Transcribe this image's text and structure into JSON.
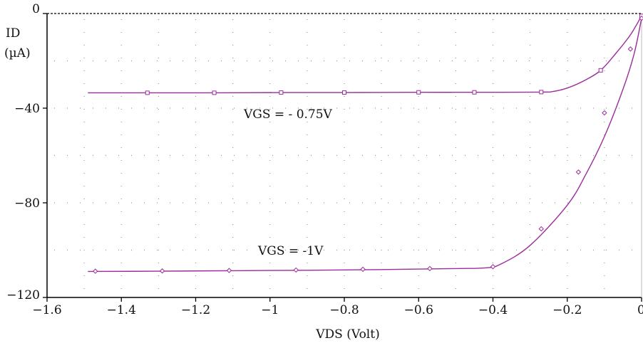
{
  "chart_data": {
    "type": "line",
    "xlabel": "VDS (Volt)",
    "ylabel_line1": "ID",
    "ylabel_line2": "(µA)",
    "xlim": [
      -1.6,
      0
    ],
    "ylim": [
      -120,
      0
    ],
    "x_ticks": [
      -1.6,
      -1.4,
      -1.2,
      -1,
      -0.8,
      -0.6,
      -0.4,
      -0.2,
      0
    ],
    "x_tick_labels": [
      "−1.6",
      "−1.4",
      "−1.2",
      "−1",
      "−0.8",
      "−0.6",
      "−0.4",
      "−0.2",
      "0"
    ],
    "y_ticks": [
      0,
      -40,
      -80,
      -120
    ],
    "y_tick_labels": [
      "0",
      "−40",
      "−80",
      "−120"
    ],
    "grid": "dotted",
    "colors": {
      "series": "#9b2c9b",
      "axis": "#000000",
      "grid": "#999999"
    },
    "series": [
      {
        "name": "VGS = - 0.75V",
        "marker": "square",
        "x": [
          -1.49,
          -1.33,
          -1.15,
          -0.97,
          -0.8,
          -0.6,
          -0.45,
          -0.27,
          -0.24,
          -0.2,
          -0.15,
          -0.11,
          -0.07,
          -0.03,
          0
        ],
        "y": [
          -33.5,
          -33.5,
          -33.5,
          -33.4,
          -33.4,
          -33.3,
          -33.3,
          -33.2,
          -33.0,
          -31.5,
          -28.0,
          -24.0,
          -17.0,
          -9.0,
          -1.0
        ],
        "markers_x": [
          -1.33,
          -1.15,
          -0.97,
          -0.8,
          -0.6,
          -0.45,
          -0.27,
          -0.11,
          0
        ],
        "markers_y": [
          -33.5,
          -33.5,
          -33.4,
          -33.4,
          -33.3,
          -33.3,
          -33.2,
          -24.0,
          -1.0
        ]
      },
      {
        "name": "VGS = -1V",
        "marker": "diamond",
        "x": [
          -1.49,
          -1.3,
          -1.1,
          -0.9,
          -0.7,
          -0.5,
          -0.42,
          -0.38,
          -0.3,
          -0.2,
          -0.15,
          -0.1,
          -0.05,
          -0.02,
          0
        ],
        "y": [
          -109,
          -108.9,
          -108.7,
          -108.5,
          -108.2,
          -107.8,
          -107.5,
          -106.0,
          -98.0,
          -81.0,
          -68.0,
          -52.0,
          -32.0,
          -17.0,
          -2.0
        ],
        "markers_x": [
          -1.47,
          -1.29,
          -1.11,
          -0.93,
          -0.75,
          -0.57,
          -0.4,
          -0.27,
          -0.17,
          -0.1,
          -0.03,
          0
        ],
        "markers_y": [
          -108.9,
          -108.8,
          -108.6,
          -108.4,
          -108.1,
          -107.8,
          -107.0,
          -91.0,
          -67.0,
          -42.0,
          -15.0,
          -2.0
        ]
      }
    ]
  }
}
